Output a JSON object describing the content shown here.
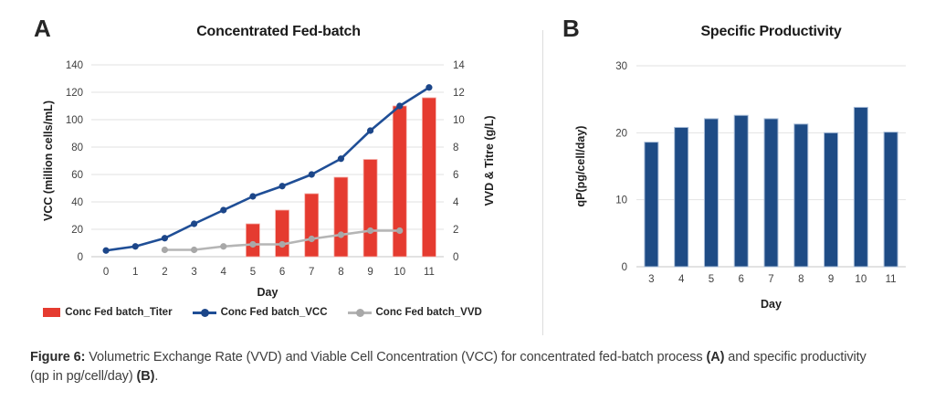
{
  "panels": {
    "a": {
      "letter": "A"
    },
    "b": {
      "letter": "B"
    }
  },
  "chart_data": [
    {
      "id": "concentrated-fed-batch",
      "type": "combo-bar-line",
      "title": "Concentrated Fed-batch",
      "xlabel": "Day",
      "ylabel_left": "VCC (million cells/mL)",
      "ylabel_right": "VVD & Titre (g/L)",
      "ylim_left": [
        0,
        140
      ],
      "ytick_step_left": 20,
      "ylim_right": [
        0,
        14
      ],
      "ytick_step_right": 2,
      "x_days": [
        0,
        1,
        2,
        3,
        4,
        5,
        6,
        7,
        8,
        9,
        10,
        11
      ],
      "grid": true,
      "legend_position": "bottom",
      "series": [
        {
          "name": "Conc Fed batch_Titer",
          "type": "bar",
          "axis": "right",
          "color": "#e53b30",
          "x": [
            5,
            6,
            7,
            8,
            9,
            10,
            11
          ],
          "values": [
            2.4,
            3.4,
            4.6,
            5.8,
            7.1,
            11.0,
            11.6
          ]
        },
        {
          "name": "Conc Fed batch_VCC",
          "type": "line",
          "axis": "left",
          "color": "#1f4e96",
          "marker_color": "#1c4689",
          "x": [
            0,
            1,
            2,
            3,
            4,
            5,
            6,
            7,
            8,
            9,
            10,
            11
          ],
          "values": [
            4.5,
            7.5,
            13.5,
            24,
            34,
            44,
            51.5,
            60,
            71.5,
            92,
            110,
            123.5
          ]
        },
        {
          "name": "Conc Fed batch_VVD",
          "type": "line",
          "axis": "right",
          "color": "#b5b5b5",
          "marker_color": "#a8a8a8",
          "x": [
            2,
            3,
            4,
            5,
            6,
            7,
            8,
            9,
            10
          ],
          "values": [
            0.5,
            0.5,
            0.75,
            0.9,
            0.9,
            1.3,
            1.6,
            1.9,
            1.9
          ]
        }
      ]
    },
    {
      "id": "specific-productivity",
      "type": "bar",
      "title": "Specific Productivity",
      "xlabel": "Day",
      "ylabel": "qP(pg/cell/day)",
      "ylim": [
        0,
        30
      ],
      "ytick_step": 10,
      "categories": [
        3,
        4,
        5,
        6,
        7,
        8,
        9,
        10,
        11
      ],
      "values": [
        18.6,
        20.8,
        22.1,
        22.6,
        22.1,
        21.3,
        20.0,
        23.8,
        20.1
      ],
      "bar_color": "#1e4b85",
      "bar_border_color": "#a9bdd8",
      "grid": true
    }
  ],
  "caption": {
    "label": "Figure 6:",
    "text_1": " Volumetric Exchange Rate (VVD) and Viable Cell Concentration (VCC) for concentrated fed-batch process ",
    "bold_a": "(A)",
    "text_2": " and specific productivity (qp in pg/cell/day) ",
    "bold_b": "(B)",
    "period": "."
  }
}
